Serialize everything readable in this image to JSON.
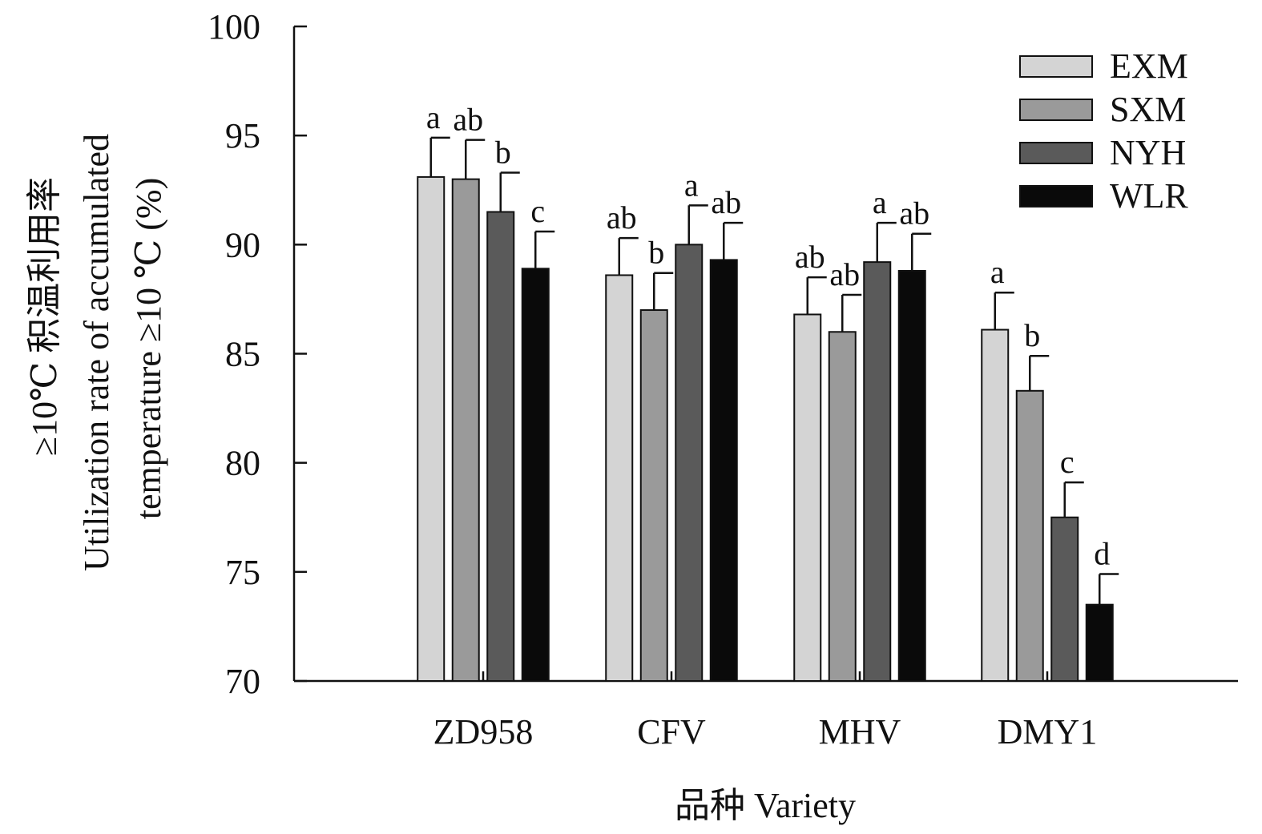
{
  "chart_data": {
    "type": "bar",
    "title": "",
    "xlabel": "品种 Variety",
    "ylabel_lines": [
      "≥10℃ 积温利用率",
      "Utilization rate of accumulated",
      "temperature ≥10 ℃ (%)"
    ],
    "ylim": [
      70,
      100
    ],
    "yticks": [
      70,
      75,
      80,
      85,
      90,
      95,
      100
    ],
    "categories": [
      "ZD958",
      "CFV",
      "MHV",
      "DMY1"
    ],
    "legend_position": "top-right",
    "grid": false,
    "series": [
      {
        "name": "EXM",
        "color": "#d4d4d4",
        "values": [
          93.1,
          88.6,
          86.8,
          86.1
        ],
        "errors": [
          1.8,
          1.7,
          1.7,
          1.7
        ],
        "labels": [
          "a",
          "ab",
          "ab",
          "a"
        ]
      },
      {
        "name": "SXM",
        "color": "#9a9a9a",
        "values": [
          93.0,
          87.0,
          86.0,
          83.3
        ],
        "errors": [
          1.8,
          1.7,
          1.7,
          1.6
        ],
        "labels": [
          "ab",
          "b",
          "ab",
          "b"
        ]
      },
      {
        "name": "NYH",
        "color": "#5a5a5a",
        "values": [
          91.5,
          90.0,
          89.2,
          77.5
        ],
        "errors": [
          1.8,
          1.8,
          1.8,
          1.6
        ],
        "labels": [
          "b",
          "a",
          "a",
          "c"
        ]
      },
      {
        "name": "WLR",
        "color": "#0a0a0a",
        "values": [
          88.9,
          89.3,
          88.8,
          73.5
        ],
        "errors": [
          1.7,
          1.7,
          1.7,
          1.4
        ],
        "labels": [
          "c",
          "ab",
          "ab",
          "d"
        ]
      }
    ]
  }
}
